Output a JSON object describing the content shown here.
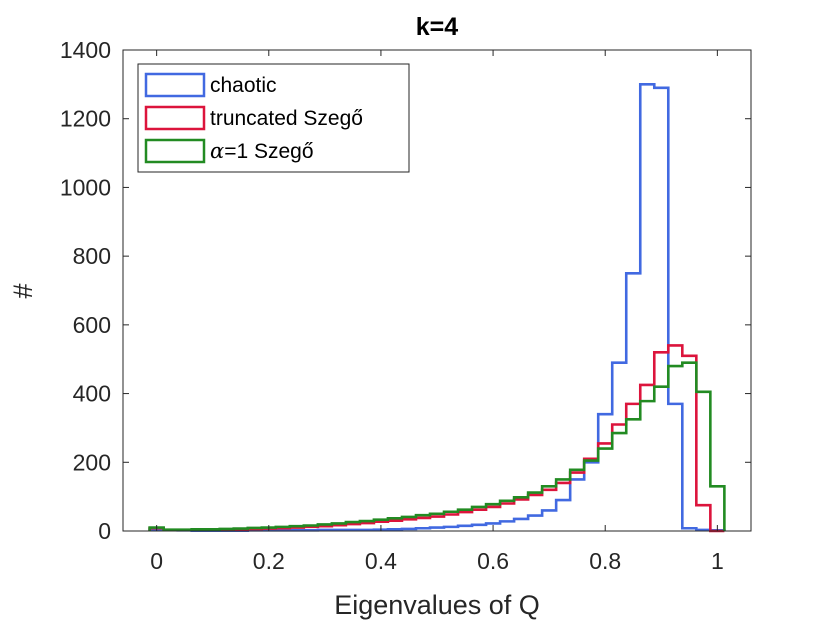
{
  "chart_data": {
    "type": "histogram",
    "title": "k=4",
    "xlabel": "Eigenvalues of Q",
    "ylabel": "#",
    "xlim": [
      -0.06,
      1.06
    ],
    "ylim": [
      0,
      1400
    ],
    "xticks": [
      0,
      0.2,
      0.4,
      0.6,
      0.8,
      1
    ],
    "xtick_labels": [
      "0",
      "0.2",
      "0.4",
      "0.6",
      "0.8",
      "1"
    ],
    "yticks": [
      0,
      200,
      400,
      600,
      800,
      1000,
      1200,
      1400
    ],
    "ytick_labels": [
      "0",
      "200",
      "400",
      "600",
      "800",
      "1000",
      "1200",
      "1400"
    ],
    "legend_position": "top-left",
    "bin_edges": [
      -0.0125,
      0.0125,
      0.0375,
      0.0625,
      0.0875,
      0.1125,
      0.1375,
      0.1625,
      0.1875,
      0.2125,
      0.2375,
      0.2625,
      0.2875,
      0.3125,
      0.3375,
      0.3625,
      0.3875,
      0.4125,
      0.4375,
      0.4625,
      0.4875,
      0.5125,
      0.5375,
      0.5625,
      0.5875,
      0.6125,
      0.6375,
      0.6625,
      0.6875,
      0.7125,
      0.7375,
      0.7625,
      0.7875,
      0.8125,
      0.8375,
      0.8625,
      0.8875,
      0.9125,
      0.9375,
      0.9625,
      0.9875,
      1.0125
    ],
    "series": [
      {
        "name": "chaotic",
        "color": "#4169E1",
        "values": [
          5,
          3,
          2,
          1,
          1,
          1,
          1,
          2,
          2,
          2,
          2,
          2,
          3,
          3,
          3,
          3,
          4,
          5,
          6,
          8,
          10,
          12,
          15,
          18,
          22,
          28,
          35,
          45,
          60,
          90,
          150,
          200,
          340,
          490,
          750,
          1300,
          1290,
          370,
          8,
          3,
          2
        ]
      },
      {
        "name": "truncated Szegő",
        "color": "#DC143C",
        "values": [
          8,
          3,
          3,
          3,
          4,
          4,
          5,
          6,
          7,
          8,
          10,
          12,
          14,
          17,
          20,
          23,
          27,
          30,
          34,
          38,
          42,
          48,
          55,
          62,
          70,
          80,
          92,
          105,
          120,
          140,
          170,
          210,
          255,
          310,
          370,
          425,
          520,
          540,
          510,
          75,
          0
        ]
      },
      {
        "name": "α=1 Szegő",
        "color": "#228B22",
        "values": [
          10,
          4,
          4,
          5,
          5,
          6,
          7,
          9,
          10,
          12,
          14,
          16,
          19,
          22,
          26,
          29,
          33,
          37,
          41,
          46,
          50,
          56,
          62,
          70,
          78,
          88,
          98,
          112,
          130,
          150,
          178,
          205,
          240,
          285,
          325,
          378,
          420,
          480,
          490,
          405,
          130
        ]
      }
    ],
    "legend_entries": [
      {
        "label": "chaotic"
      },
      {
        "label": "truncated Szegő"
      },
      {
        "label_symbol": "α",
        "label_rest": "=1 Szegő"
      }
    ]
  }
}
